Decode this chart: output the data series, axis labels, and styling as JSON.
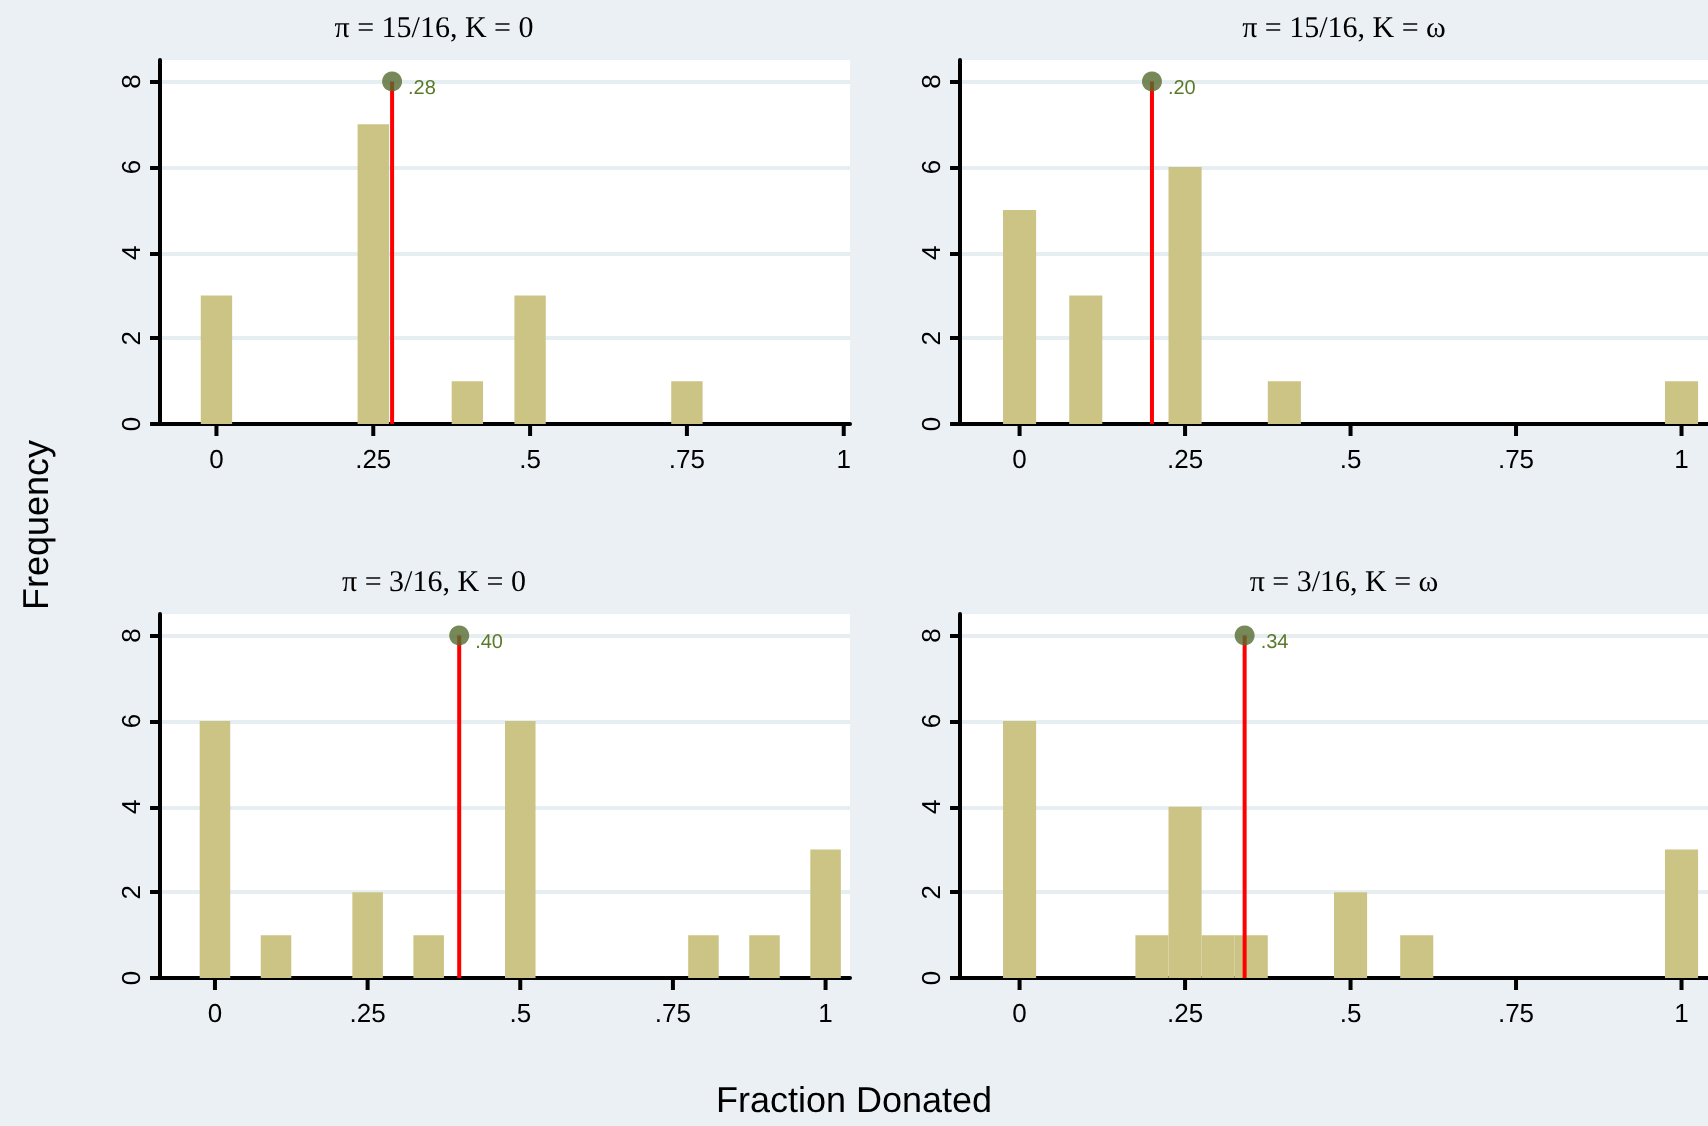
{
  "chart_data": [
    {
      "type": "histogram",
      "title": "π = 15/16, K = 0",
      "ylabel": "Frequency",
      "bins": [
        -0.025,
        0.025,
        0.075,
        0.125,
        0.175,
        0.225,
        0.275,
        0.325,
        0.375,
        0.425,
        0.475,
        0.525,
        0.575,
        0.625,
        0.675,
        0.725,
        0.775,
        0.825,
        0.875,
        0.925,
        0.975,
        1.025
      ],
      "values": [
        3,
        0,
        0,
        0,
        0,
        7,
        0,
        0,
        1,
        0,
        3,
        0,
        0,
        0,
        0,
        1,
        0,
        0,
        0,
        0,
        0
      ],
      "color": "#ccc484",
      "xlim": [
        -0.09,
        1.01
      ],
      "xticks": [
        {
          "value": 0,
          "label": "0"
        },
        {
          "value": 0.25,
          "label": ".25"
        },
        {
          "value": 0.5,
          "label": ".5"
        },
        {
          "value": 0.75,
          "label": ".75"
        },
        {
          "value": 1,
          "label": "1"
        }
      ],
      "ylim": [
        0,
        8.5
      ],
      "yticks": [
        0,
        2,
        4,
        6,
        8
      ],
      "grid": "y",
      "ref_lines": [
        {
          "axis": "x",
          "value": 0.28,
          "label": ".28",
          "color": "#ff0000"
        }
      ],
      "series": [
        {
          "type": "scatter",
          "x": [
            0.28
          ],
          "values": [
            8
          ],
          "color": "#556b2f"
        }
      ]
    },
    {
      "type": "histogram",
      "title": "π = 15/16, K = ω",
      "bins": [
        -0.025,
        0.025,
        0.075,
        0.125,
        0.175,
        0.225,
        0.275,
        0.325,
        0.375,
        0.425,
        0.475,
        0.525,
        0.575,
        0.625,
        0.675,
        0.725,
        0.775,
        0.825,
        0.875,
        0.925,
        0.975,
        1.025
      ],
      "values": [
        5,
        0,
        3,
        0,
        0,
        6,
        0,
        0,
        1,
        0,
        0,
        0,
        0,
        0,
        0,
        0,
        0,
        0,
        0,
        0,
        1
      ],
      "color": "#ccc484",
      "xlim": [
        -0.09,
        1.04
      ],
      "xticks": [
        {
          "value": 0,
          "label": "0"
        },
        {
          "value": 0.25,
          "label": ".25"
        },
        {
          "value": 0.5,
          "label": ".5"
        },
        {
          "value": 0.75,
          "label": ".75"
        },
        {
          "value": 1,
          "label": "1"
        }
      ],
      "ylim": [
        0,
        8.5
      ],
      "yticks": [
        0,
        2,
        4,
        6,
        8
      ],
      "grid": "y",
      "ref_lines": [
        {
          "axis": "x",
          "value": 0.2,
          "label": ".20",
          "color": "#ff0000"
        }
      ],
      "series": [
        {
          "type": "scatter",
          "x": [
            0.2
          ],
          "values": [
            8
          ],
          "color": "#556b2f"
        }
      ]
    },
    {
      "type": "histogram",
      "title": "π = 3/16, K = 0",
      "xlabel": "Fraction Donated",
      "bins": [
        -0.025,
        0.025,
        0.075,
        0.125,
        0.175,
        0.225,
        0.275,
        0.325,
        0.375,
        0.425,
        0.475,
        0.525,
        0.575,
        0.625,
        0.675,
        0.725,
        0.775,
        0.825,
        0.875,
        0.925,
        0.975,
        1.025
      ],
      "values": [
        6,
        0,
        1,
        0,
        0,
        2,
        0,
        1,
        0,
        0,
        6,
        0,
        0,
        0,
        0,
        0,
        1,
        0,
        1,
        0,
        3
      ],
      "color": "#ccc484",
      "xlim": [
        -0.09,
        1.04
      ],
      "xticks": [
        {
          "value": 0,
          "label": "0"
        },
        {
          "value": 0.25,
          "label": ".25"
        },
        {
          "value": 0.5,
          "label": ".5"
        },
        {
          "value": 0.75,
          "label": ".75"
        },
        {
          "value": 1,
          "label": "1"
        }
      ],
      "ylim": [
        0,
        8.5
      ],
      "yticks": [
        0,
        2,
        4,
        6,
        8
      ],
      "grid": "y",
      "ref_lines": [
        {
          "axis": "x",
          "value": 0.4,
          "label": ".40",
          "color": "#ff0000"
        }
      ],
      "series": [
        {
          "type": "scatter",
          "x": [
            0.4
          ],
          "values": [
            8
          ],
          "color": "#556b2f"
        }
      ]
    },
    {
      "type": "histogram",
      "title": "π = 3/16, K = ω",
      "bins": [
        -0.025,
        0.025,
        0.075,
        0.125,
        0.175,
        0.225,
        0.275,
        0.325,
        0.375,
        0.425,
        0.475,
        0.525,
        0.575,
        0.625,
        0.675,
        0.725,
        0.775,
        0.825,
        0.875,
        0.925,
        0.975,
        1.025
      ],
      "values": [
        6,
        0,
        0,
        0,
        1,
        4,
        1,
        1,
        0,
        0,
        2,
        0,
        1,
        0,
        0,
        0,
        0,
        0,
        0,
        0,
        3
      ],
      "color": "#ccc484",
      "xlim": [
        -0.09,
        1.04
      ],
      "xticks": [
        {
          "value": 0,
          "label": "0"
        },
        {
          "value": 0.25,
          "label": ".25"
        },
        {
          "value": 0.5,
          "label": ".5"
        },
        {
          "value": 0.75,
          "label": ".75"
        },
        {
          "value": 1,
          "label": "1"
        }
      ],
      "ylim": [
        0,
        8.5
      ],
      "yticks": [
        0,
        2,
        4,
        6,
        8
      ],
      "grid": "y",
      "ref_lines": [
        {
          "axis": "x",
          "value": 0.34,
          "label": ".34",
          "color": "#ff0000"
        }
      ],
      "series": [
        {
          "type": "scatter",
          "x": [
            0.34
          ],
          "values": [
            8
          ],
          "color": "#556b2f"
        }
      ]
    }
  ]
}
